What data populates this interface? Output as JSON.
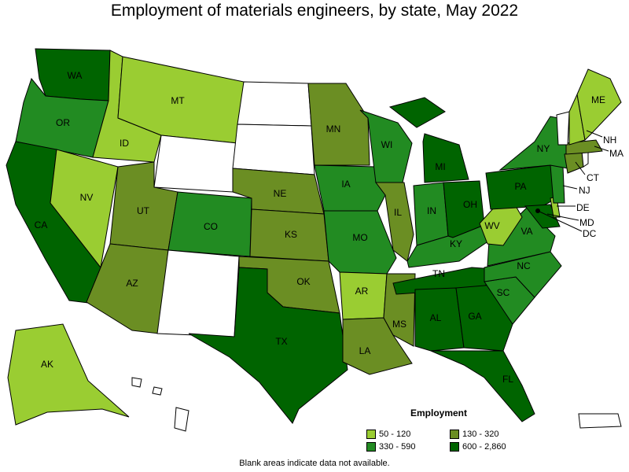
{
  "title": "Employment of materials engineers, by state, May 2022",
  "legend": {
    "title": "Employment",
    "items": [
      {
        "label": "50 - 120",
        "color": "#9acd32"
      },
      {
        "label": "130 - 320",
        "color": "#6b8e23"
      },
      {
        "label": "330 - 590",
        "color": "#228b22"
      },
      {
        "label": "600 - 2,860",
        "color": "#006400"
      }
    ]
  },
  "colors": {
    "no_data": "#ffffff",
    "border": "#000000"
  },
  "states": [
    {
      "abbr": "WA",
      "bin": 3
    },
    {
      "abbr": "OR",
      "bin": 2
    },
    {
      "abbr": "CA",
      "bin": 3
    },
    {
      "abbr": "NV",
      "bin": 0
    },
    {
      "abbr": "ID",
      "bin": 0
    },
    {
      "abbr": "MT",
      "bin": 0
    },
    {
      "abbr": "UT",
      "bin": 1
    },
    {
      "abbr": "AZ",
      "bin": 1
    },
    {
      "abbr": "CO",
      "bin": 2
    },
    {
      "abbr": "NE",
      "bin": 1
    },
    {
      "abbr": "KS",
      "bin": 1
    },
    {
      "abbr": "OK",
      "bin": 1
    },
    {
      "abbr": "TX",
      "bin": 3
    },
    {
      "abbr": "MN",
      "bin": 1
    },
    {
      "abbr": "IA",
      "bin": 2
    },
    {
      "abbr": "MO",
      "bin": 2
    },
    {
      "abbr": "AR",
      "bin": 0
    },
    {
      "abbr": "LA",
      "bin": 1
    },
    {
      "abbr": "WI",
      "bin": 2
    },
    {
      "abbr": "IL",
      "bin": 1
    },
    {
      "abbr": "MS",
      "bin": 1
    },
    {
      "abbr": "MI",
      "bin": 3
    },
    {
      "abbr": "IN",
      "bin": 2
    },
    {
      "abbr": "OH",
      "bin": 3
    },
    {
      "abbr": "KY",
      "bin": 2
    },
    {
      "abbr": "TN",
      "bin": 3
    },
    {
      "abbr": "AL",
      "bin": 3
    },
    {
      "abbr": "GA",
      "bin": 3
    },
    {
      "abbr": "FL",
      "bin": 3
    },
    {
      "abbr": "SC",
      "bin": 2
    },
    {
      "abbr": "NC",
      "bin": 2
    },
    {
      "abbr": "VA",
      "bin": 2
    },
    {
      "abbr": "WV",
      "bin": 0
    },
    {
      "abbr": "PA",
      "bin": 3
    },
    {
      "abbr": "NY",
      "bin": 2
    },
    {
      "abbr": "ME",
      "bin": 0
    },
    {
      "abbr": "NH",
      "bin": 0
    },
    {
      "abbr": "VT",
      "bin": null
    },
    {
      "abbr": "MA",
      "bin": 1
    },
    {
      "abbr": "CT",
      "bin": 1
    },
    {
      "abbr": "NJ",
      "bin": 2
    },
    {
      "abbr": "DE",
      "bin": 0
    },
    {
      "abbr": "MD",
      "bin": 3
    },
    {
      "abbr": "DC",
      "bin": null
    },
    {
      "abbr": "AK",
      "bin": 0
    },
    {
      "abbr": "ND",
      "bin": null
    },
    {
      "abbr": "SD",
      "bin": null
    },
    {
      "abbr": "WY",
      "bin": null
    },
    {
      "abbr": "NM",
      "bin": null
    },
    {
      "abbr": "HI",
      "bin": null
    },
    {
      "abbr": "PR",
      "bin": null
    },
    {
      "abbr": "RI",
      "bin": null
    }
  ],
  "note": "Blank areas indicate data not available."
}
